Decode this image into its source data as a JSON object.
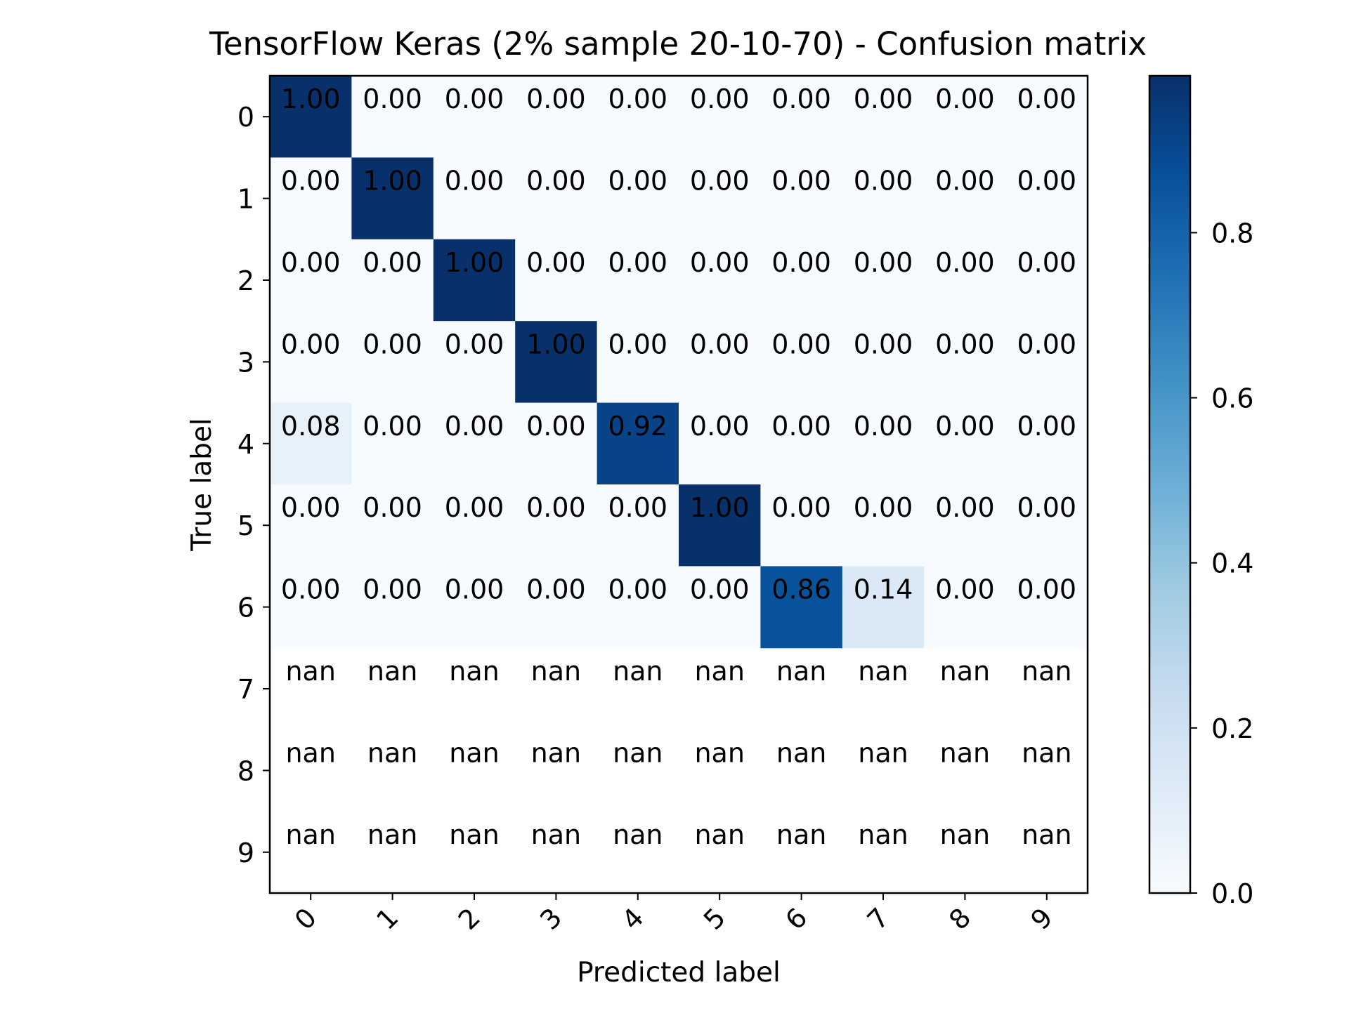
{
  "chart_data": {
    "type": "heatmap",
    "title": "TensorFlow Keras (2% sample 20-10-70) - Confusion matrix",
    "xlabel": "Predicted label",
    "ylabel": "True label",
    "x_tick_labels": [
      "0",
      "1",
      "2",
      "3",
      "4",
      "5",
      "6",
      "7",
      "8",
      "9"
    ],
    "y_tick_labels": [
      "0",
      "1",
      "2",
      "3",
      "4",
      "5",
      "6",
      "7",
      "8",
      "9"
    ],
    "colormap": "Blues",
    "colorbar_range": [
      0.0,
      0.99
    ],
    "colorbar_ticks": [
      "0.0",
      "0.2",
      "0.4",
      "0.6",
      "0.8"
    ],
    "values": [
      [
        1.0,
        0.0,
        0.0,
        0.0,
        0.0,
        0.0,
        0.0,
        0.0,
        0.0,
        0.0
      ],
      [
        0.0,
        1.0,
        0.0,
        0.0,
        0.0,
        0.0,
        0.0,
        0.0,
        0.0,
        0.0
      ],
      [
        0.0,
        0.0,
        1.0,
        0.0,
        0.0,
        0.0,
        0.0,
        0.0,
        0.0,
        0.0
      ],
      [
        0.0,
        0.0,
        0.0,
        1.0,
        0.0,
        0.0,
        0.0,
        0.0,
        0.0,
        0.0
      ],
      [
        0.08,
        0.0,
        0.0,
        0.0,
        0.92,
        0.0,
        0.0,
        0.0,
        0.0,
        0.0
      ],
      [
        0.0,
        0.0,
        0.0,
        0.0,
        0.0,
        1.0,
        0.0,
        0.0,
        0.0,
        0.0
      ],
      [
        0.0,
        0.0,
        0.0,
        0.0,
        0.0,
        0.0,
        0.86,
        0.14,
        0.0,
        0.0
      ],
      [
        null,
        null,
        null,
        null,
        null,
        null,
        null,
        null,
        null,
        null
      ],
      [
        null,
        null,
        null,
        null,
        null,
        null,
        null,
        null,
        null,
        null
      ],
      [
        null,
        null,
        null,
        null,
        null,
        null,
        null,
        null,
        null,
        null
      ]
    ],
    "cell_labels": [
      [
        "1.00",
        "0.00",
        "0.00",
        "0.00",
        "0.00",
        "0.00",
        "0.00",
        "0.00",
        "0.00",
        "0.00"
      ],
      [
        "0.00",
        "1.00",
        "0.00",
        "0.00",
        "0.00",
        "0.00",
        "0.00",
        "0.00",
        "0.00",
        "0.00"
      ],
      [
        "0.00",
        "0.00",
        "1.00",
        "0.00",
        "0.00",
        "0.00",
        "0.00",
        "0.00",
        "0.00",
        "0.00"
      ],
      [
        "0.00",
        "0.00",
        "0.00",
        "1.00",
        "0.00",
        "0.00",
        "0.00",
        "0.00",
        "0.00",
        "0.00"
      ],
      [
        "0.08",
        "0.00",
        "0.00",
        "0.00",
        "0.92",
        "0.00",
        "0.00",
        "0.00",
        "0.00",
        "0.00"
      ],
      [
        "0.00",
        "0.00",
        "0.00",
        "0.00",
        "0.00",
        "1.00",
        "0.00",
        "0.00",
        "0.00",
        "0.00"
      ],
      [
        "0.00",
        "0.00",
        "0.00",
        "0.00",
        "0.00",
        "0.00",
        "0.86",
        "0.14",
        "0.00",
        "0.00"
      ],
      [
        "nan",
        "nan",
        "nan",
        "nan",
        "nan",
        "nan",
        "nan",
        "nan",
        "nan",
        "nan"
      ],
      [
        "nan",
        "nan",
        "nan",
        "nan",
        "nan",
        "nan",
        "nan",
        "nan",
        "nan",
        "nan"
      ],
      [
        "nan",
        "nan",
        "nan",
        "nan",
        "nan",
        "nan",
        "nan",
        "nan",
        "nan",
        "nan"
      ]
    ]
  }
}
